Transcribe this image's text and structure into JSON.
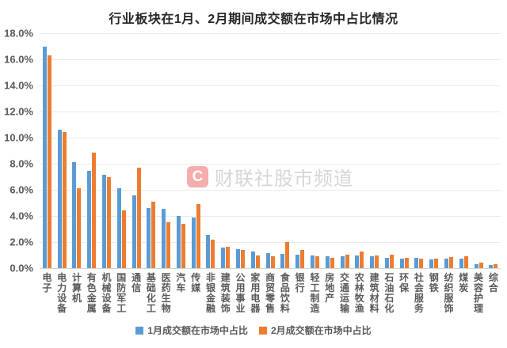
{
  "title": "行业板块在1月、2月期间成交额在市场中占比情况",
  "watermark": {
    "logo_letter": "C",
    "text": "财联社股市频道"
  },
  "colors": {
    "series1_blue": "#5B9BD5",
    "series2_orange": "#ED7D31",
    "grid": "#EBEBEB",
    "axis_line": "#D4D4D4",
    "axis_text": "#595959",
    "title_text": "#262626",
    "watermark_logo_bg": "rgba(232,73,73,0.45)",
    "watermark_text_color": "rgba(180,180,180,0.55)"
  },
  "chart_data": {
    "type": "bar",
    "title": "行业板块在1月、2月期间成交额在市场中占比情况",
    "xlabel": "",
    "ylabel": "",
    "ylim": [
      0,
      18
    ],
    "y_tick_step": 2,
    "y_ticks": [
      "18.0%",
      "16.0%",
      "14.0%",
      "12.0%",
      "10.0%",
      "8.0%",
      "6.0%",
      "4.0%",
      "2.0%",
      "0.0%"
    ],
    "grid": true,
    "legend_position": "bottom",
    "categories": [
      "电子",
      "电力设备",
      "计算机",
      "有色金属",
      "机械设备",
      "国防军工",
      "通信",
      "基础化工",
      "医药生物",
      "汽车",
      "传媒",
      "非银金融",
      "建筑装饰",
      "公用事业",
      "家用电器",
      "商贸零售",
      "食品饮料",
      "银行",
      "轻工制造",
      "房地产",
      "交通运输",
      "农林牧渔",
      "建筑材料",
      "石油石化",
      "环保",
      "社会服务",
      "钢铁",
      "纺织服饰",
      "煤炭",
      "美容护理",
      "综合"
    ],
    "series": [
      {
        "name": "1月成交额在市场中占比",
        "color": "#5B9BD5",
        "values": [
          17.0,
          10.6,
          8.1,
          7.45,
          7.15,
          6.1,
          5.55,
          4.6,
          4.55,
          4.0,
          3.9,
          2.55,
          1.55,
          1.45,
          1.3,
          1.15,
          1.1,
          1.05,
          1.0,
          0.9,
          0.9,
          0.95,
          0.9,
          0.8,
          0.75,
          0.8,
          0.65,
          0.7,
          0.7,
          0.3,
          0.25
        ]
      },
      {
        "name": "2月成交额在市场中占比",
        "color": "#ED7D31",
        "values": [
          16.3,
          10.4,
          6.15,
          8.85,
          7.0,
          4.4,
          7.7,
          5.1,
          3.5,
          3.4,
          4.9,
          2.2,
          1.65,
          1.4,
          0.95,
          0.9,
          2.0,
          1.4,
          0.9,
          0.8,
          1.05,
          1.3,
          0.95,
          1.05,
          0.8,
          0.7,
          0.75,
          0.85,
          0.9,
          0.4,
          0.3
        ]
      }
    ]
  }
}
